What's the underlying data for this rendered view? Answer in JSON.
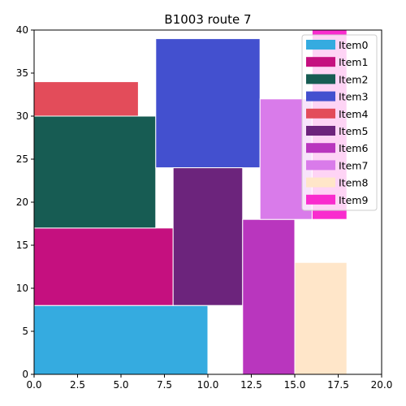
{
  "chart_data": {
    "type": "treemap-rectangles",
    "title": "B1003 route 7",
    "xlim": [
      0,
      20
    ],
    "ylim": [
      0,
      40
    ],
    "x_ticks": [
      0.0,
      2.5,
      5.0,
      7.5,
      10.0,
      12.5,
      15.0,
      17.5,
      20.0
    ],
    "y_ticks": [
      0,
      5,
      10,
      15,
      20,
      25,
      30,
      35,
      40
    ],
    "x_tick_labels": [
      "0.0",
      "2.5",
      "5.0",
      "7.5",
      "10.0",
      "12.5",
      "15.0",
      "17.5",
      "20.0"
    ],
    "y_tick_labels": [
      "0",
      "5",
      "10",
      "15",
      "20",
      "25",
      "30",
      "35",
      "40"
    ],
    "grid": false,
    "legend_position": "top-right",
    "series": [
      {
        "name": "Item0",
        "color": "#35ABE0",
        "x0": 0,
        "y0": 0,
        "x1": 10,
        "y1": 8
      },
      {
        "name": "Item1",
        "color": "#C5107F",
        "x0": 0,
        "y0": 8,
        "x1": 8,
        "y1": 17
      },
      {
        "name": "Item2",
        "color": "#175C53",
        "x0": 0,
        "y0": 17,
        "x1": 7,
        "y1": 30
      },
      {
        "name": "Item3",
        "color": "#4350CF",
        "x0": 7,
        "y0": 24,
        "x1": 13,
        "y1": 39
      },
      {
        "name": "Item4",
        "color": "#E34C5A",
        "x0": 0,
        "y0": 30,
        "x1": 6,
        "y1": 34
      },
      {
        "name": "Item5",
        "color": "#6C247C",
        "x0": 8,
        "y0": 8,
        "x1": 12,
        "y1": 24
      },
      {
        "name": "Item6",
        "color": "#B936BE",
        "x0": 12,
        "y0": 0,
        "x1": 15,
        "y1": 18
      },
      {
        "name": "Item7",
        "color": "#D97BEA",
        "x0": 13,
        "y0": 18,
        "x1": 16,
        "y1": 32
      },
      {
        "name": "Item8",
        "color": "#FFE6C9",
        "x0": 15,
        "y0": 0,
        "x1": 18,
        "y1": 13
      },
      {
        "name": "Item9",
        "color": "#F92CCE",
        "x0": 16,
        "y0": 18,
        "x1": 18,
        "y1": 40
      }
    ]
  }
}
